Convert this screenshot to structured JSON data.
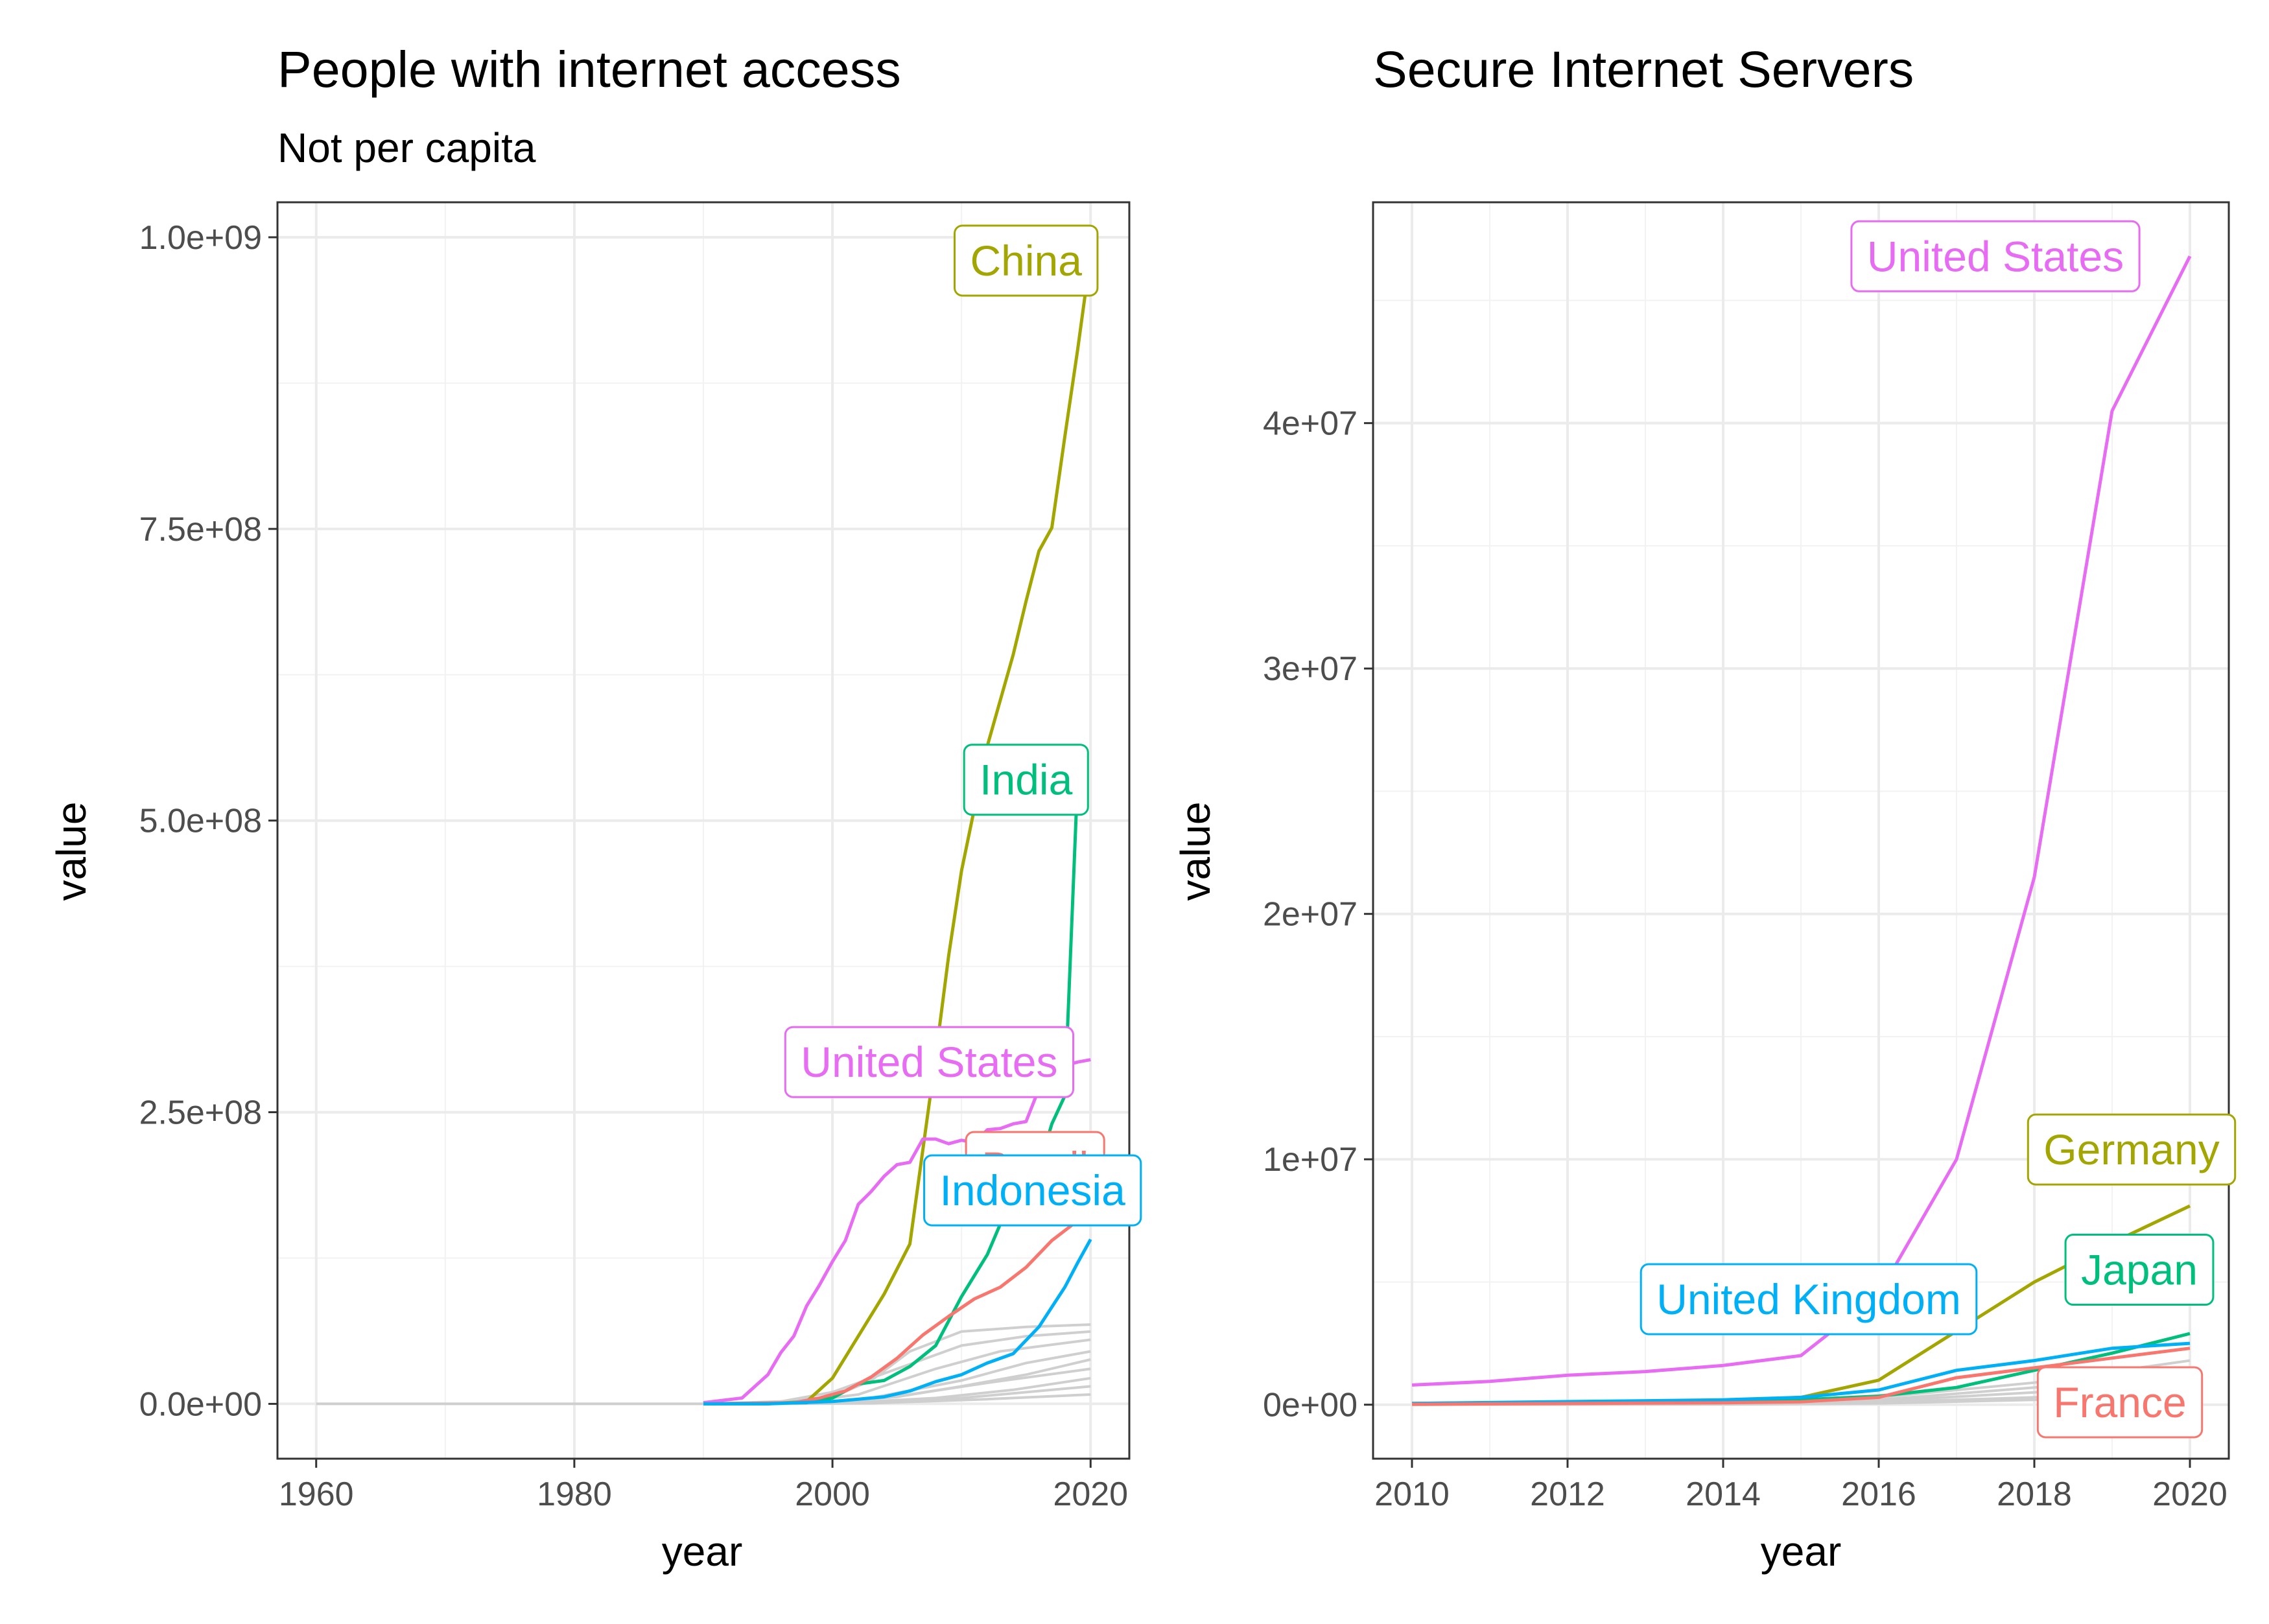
{
  "chart_data": [
    {
      "type": "line",
      "title": "People with internet access",
      "subtitle": "Not per capita",
      "xlabel": "year",
      "ylabel": "value",
      "xlim": [
        1957,
        2023
      ],
      "ylim": [
        -47000000,
        1030000000
      ],
      "x_ticks": [
        1960,
        1980,
        2000,
        2020
      ],
      "x_tick_labels": [
        "1960",
        "1980",
        "2000",
        "2020"
      ],
      "y_ticks": [
        0,
        250000000,
        500000000,
        750000000,
        1000000000
      ],
      "y_tick_labels": [
        "0.0e+00",
        "2.5e+08",
        "5.0e+08",
        "7.5e+08",
        "1.0e+09"
      ],
      "grid": true,
      "legend": "none",
      "background_series": [
        {
          "x": [
            1960,
            1990
          ],
          "values": [
            0,
            0
          ]
        },
        {
          "x": [
            1990,
            1995,
            2000,
            2003,
            2006,
            2010,
            2015,
            2020
          ],
          "values": [
            0,
            1000000,
            6000000,
            20000000,
            45000000,
            62000000,
            66000000,
            68000000
          ]
        },
        {
          "x": [
            1990,
            1996,
            2000,
            2005,
            2010,
            2015,
            2020
          ],
          "values": [
            0,
            2000000,
            10000000,
            30000000,
            50000000,
            58000000,
            62000000
          ]
        },
        {
          "x": [
            1990,
            1997,
            2002,
            2008,
            2013,
            2020
          ],
          "values": [
            0,
            1000000,
            8000000,
            30000000,
            45000000,
            55000000
          ]
        },
        {
          "x": [
            1990,
            1998,
            2003,
            2010,
            2015,
            2020
          ],
          "values": [
            0,
            500000,
            5000000,
            20000000,
            35000000,
            45000000
          ]
        },
        {
          "x": [
            1990,
            1999,
            2005,
            2010,
            2015,
            2020
          ],
          "values": [
            0,
            500000,
            6000000,
            15000000,
            25000000,
            38000000
          ]
        },
        {
          "x": [
            1990,
            2000,
            2006,
            2012,
            2020
          ],
          "values": [
            0,
            1000000,
            8000000,
            18000000,
            30000000
          ]
        },
        {
          "x": [
            1990,
            2000,
            2008,
            2014,
            2020
          ],
          "values": [
            0,
            300000,
            5000000,
            12000000,
            22000000
          ]
        },
        {
          "x": [
            1990,
            2002,
            2010,
            2020
          ],
          "values": [
            0,
            500000,
            5000000,
            15000000
          ]
        },
        {
          "x": [
            1990,
            2003,
            2012,
            2020
          ],
          "values": [
            0,
            500000,
            4000000,
            8000000
          ]
        }
      ],
      "series": [
        {
          "name": "China",
          "color": "#a3a500",
          "x": [
            1990,
            1995,
            1998,
            2000,
            2002,
            2004,
            2006,
            2008,
            2009,
            2010,
            2012,
            2014,
            2015,
            2016,
            2017,
            2018,
            2019,
            2020
          ],
          "values": [
            0,
            0,
            2000000,
            22000000,
            58000000,
            94000000,
            137000000,
            298000000,
            384000000,
            457000000,
            564000000,
            642000000,
            688000000,
            731000000,
            751000000,
            829000000,
            904000000,
            985000000
          ]
        },
        {
          "name": "India",
          "color": "#00bf7d",
          "x": [
            1990,
            1998,
            2000,
            2002,
            2004,
            2006,
            2008,
            2010,
            2012,
            2014,
            2016,
            2017,
            2018,
            2019
          ],
          "values": [
            0,
            1000000,
            5000000,
            17000000,
            20000000,
            32000000,
            50000000,
            92000000,
            128000000,
            180000000,
            203000000,
            240000000,
            264000000,
            538000000
          ]
        },
        {
          "name": "United States",
          "color": "#e76bf3",
          "x": [
            1990,
            1993,
            1995,
            1996,
            1997,
            1998,
            1999,
            2000,
            2001,
            2002,
            2003,
            2004,
            2005,
            2006,
            2007,
            2008,
            2009,
            2010,
            2011,
            2012,
            2013,
            2014,
            2015,
            2016,
            2017,
            2018,
            2019,
            2020
          ],
          "values": [
            1000000,
            5000000,
            25000000,
            44000000,
            58000000,
            84000000,
            102000000,
            122000000,
            140000000,
            171000000,
            182000000,
            195000000,
            205000000,
            207000000,
            227000000,
            227000000,
            223000000,
            226000000,
            224000000,
            235000000,
            236000000,
            240000000,
            242000000,
            270000000,
            285000000,
            290000000,
            293000000,
            295000000
          ]
        },
        {
          "name": "Brazil",
          "color": "#f8766d",
          "x": [
            1990,
            1997,
            1999,
            2001,
            2003,
            2005,
            2007,
            2009,
            2011,
            2013,
            2015,
            2017,
            2019
          ],
          "values": [
            0,
            1000000,
            5000000,
            11000000,
            23000000,
            39000000,
            59000000,
            75000000,
            90000000,
            100000000,
            117000000,
            140000000,
            157000000
          ]
        },
        {
          "name": "Indonesia",
          "color": "#00b0f6",
          "x": [
            1990,
            1995,
            2000,
            2002,
            2004,
            2006,
            2008,
            2010,
            2012,
            2014,
            2016,
            2018,
            2019,
            2020
          ],
          "values": [
            0,
            0,
            2000000,
            4000000,
            6000000,
            11000000,
            19000000,
            25000000,
            35000000,
            43000000,
            66000000,
            100000000,
            121000000,
            141000000
          ]
        }
      ],
      "annotations": [
        {
          "text": "China",
          "series": "China",
          "x": 2015,
          "y": 980000000
        },
        {
          "text": "India",
          "series": "India",
          "x": 2015,
          "y": 535000000
        },
        {
          "text": "United States",
          "series": "United States",
          "x": 2007.5,
          "y": 293000000
        },
        {
          "text": "Brazil",
          "series": "Brazil",
          "x": 2015.7,
          "y": 203000000
        },
        {
          "text": "Indonesia",
          "series": "Indonesia",
          "x": 2015.5,
          "y": 183000000
        }
      ]
    },
    {
      "type": "line",
      "title": "Secure Internet Servers",
      "xlabel": "year",
      "ylabel": "value",
      "xlim": [
        2009.5,
        2020.5
      ],
      "ylim": [
        -2200000,
        49000000
      ],
      "x_ticks": [
        2010,
        2012,
        2014,
        2016,
        2018,
        2020
      ],
      "x_tick_labels": [
        "2010",
        "2012",
        "2014",
        "2016",
        "2018",
        "2020"
      ],
      "y_ticks": [
        0,
        10000000,
        20000000,
        30000000,
        40000000
      ],
      "y_tick_labels": [
        "0e+00",
        "1e+07",
        "2e+07",
        "3e+07",
        "4e+07"
      ],
      "grid": true,
      "legend": "none",
      "background_series": [
        {
          "x": [
            2010,
            2014,
            2016,
            2018,
            2020
          ],
          "values": [
            0,
            100000,
            300000,
            900000,
            1800000
          ]
        },
        {
          "x": [
            2010,
            2014,
            2016,
            2018,
            2020
          ],
          "values": [
            0,
            80000,
            200000,
            700000,
            1400000
          ]
        },
        {
          "x": [
            2010,
            2014,
            2016,
            2018,
            2020
          ],
          "values": [
            0,
            60000,
            150000,
            500000,
            1000000
          ]
        },
        {
          "x": [
            2010,
            2014,
            2016,
            2018,
            2020
          ],
          "values": [
            0,
            40000,
            100000,
            300000,
            700000
          ]
        },
        {
          "x": [
            2010,
            2014,
            2016,
            2018,
            2020
          ],
          "values": [
            0,
            20000,
            50000,
            200000,
            400000
          ]
        }
      ],
      "series": [
        {
          "name": "United States",
          "color": "#e76bf3",
          "x": [
            2010,
            2011,
            2012,
            2013,
            2014,
            2015,
            2016,
            2017,
            2018,
            2019,
            2020
          ],
          "values": [
            800000,
            950000,
            1200000,
            1350000,
            1600000,
            2000000,
            4500000,
            10000000,
            21500000,
            40500000,
            46800000
          ]
        },
        {
          "name": "Germany",
          "color": "#a3a500",
          "x": [
            2010,
            2014,
            2015,
            2016,
            2017,
            2018,
            2019,
            2020
          ],
          "values": [
            50000,
            150000,
            300000,
            1000000,
            3000000,
            5000000,
            6600000,
            8100000
          ]
        },
        {
          "name": "Japan",
          "color": "#00bf7d",
          "x": [
            2010,
            2014,
            2015,
            2016,
            2017,
            2018,
            2019,
            2020
          ],
          "values": [
            30000,
            100000,
            200000,
            350000,
            700000,
            1400000,
            2100000,
            2900000
          ]
        },
        {
          "name": "United Kingdom",
          "color": "#00b0f6",
          "x": [
            2010,
            2014,
            2015,
            2016,
            2017,
            2018,
            2019,
            2020
          ],
          "values": [
            50000,
            200000,
            300000,
            600000,
            1400000,
            1800000,
            2300000,
            2500000
          ]
        },
        {
          "name": "France",
          "color": "#f8766d",
          "x": [
            2010,
            2014,
            2015,
            2016,
            2017,
            2018,
            2019,
            2020
          ],
          "values": [
            20000,
            80000,
            120000,
            300000,
            1100000,
            1500000,
            1900000,
            2300000
          ]
        }
      ],
      "annotations": [
        {
          "text": "United States",
          "series": "United States",
          "x": 2017.5,
          "y": 46800000
        },
        {
          "text": "Germany",
          "series": "Germany",
          "x": 2019.25,
          "y": 10400000
        },
        {
          "text": "Japan",
          "series": "Japan",
          "x": 2019.35,
          "y": 5500000
        },
        {
          "text": "United Kingdom",
          "series": "United Kingdom",
          "x": 2015.1,
          "y": 4300000
        },
        {
          "text": "France",
          "series": "France",
          "x": 2019.1,
          "y": 100000
        }
      ]
    }
  ]
}
